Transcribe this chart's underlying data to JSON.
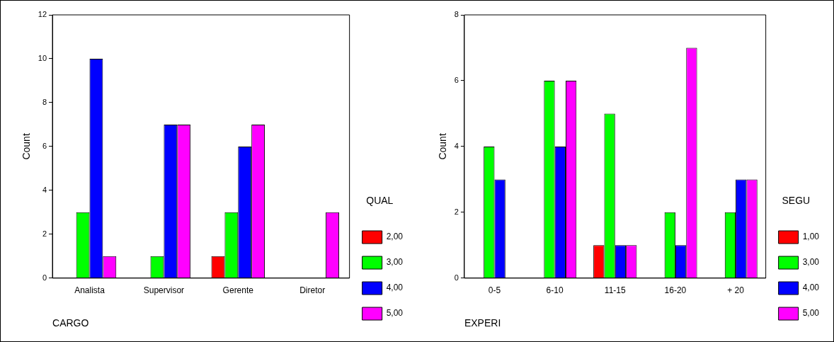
{
  "chart_data": [
    {
      "type": "bar",
      "categories": [
        "Analista",
        "Supervisor",
        "Gerente",
        "Diretor"
      ],
      "xlabel": "CARGO",
      "ylabel": "Count",
      "legend_title": "QUAL",
      "legend": "right",
      "ylim": [
        0,
        12
      ],
      "yticks": [
        0,
        2,
        4,
        6,
        8,
        10,
        12
      ],
      "series": [
        {
          "name": "2,00",
          "color": "#ff0000",
          "values": [
            0,
            0,
            1,
            0
          ]
        },
        {
          "name": "3,00",
          "color": "#00ff00",
          "values": [
            3,
            1,
            3,
            0
          ]
        },
        {
          "name": "4,00",
          "color": "#0000ff",
          "values": [
            10,
            7,
            6,
            0
          ]
        },
        {
          "name": "5,00",
          "color": "#ff00ff",
          "values": [
            1,
            7,
            7,
            3
          ]
        }
      ]
    },
    {
      "type": "bar",
      "categories": [
        "0-5",
        "6-10",
        "11-15",
        "16-20",
        "+ 20"
      ],
      "xlabel": "EXPERI",
      "ylabel": "Count",
      "legend_title": "SEGU",
      "legend": "right",
      "ylim": [
        0,
        8
      ],
      "yticks": [
        0,
        2,
        4,
        6,
        8
      ],
      "series": [
        {
          "name": "1,00",
          "color": "#ff0000",
          "values": [
            0,
            0,
            1,
            0,
            0
          ]
        },
        {
          "name": "3,00",
          "color": "#00ff00",
          "values": [
            4,
            6,
            5,
            2,
            2
          ]
        },
        {
          "name": "4,00",
          "color": "#0000ff",
          "values": [
            3,
            4,
            1,
            1,
            3
          ]
        },
        {
          "name": "5,00",
          "color": "#ff00ff",
          "values": [
            0,
            6,
            1,
            7,
            3
          ]
        }
      ]
    }
  ]
}
